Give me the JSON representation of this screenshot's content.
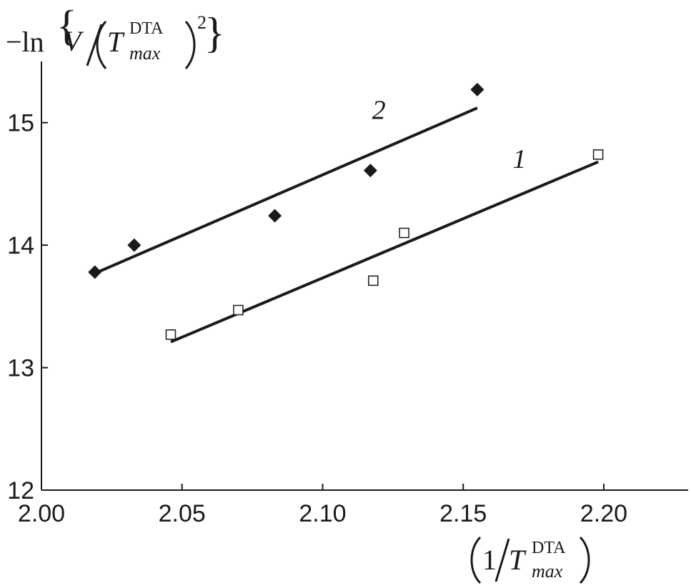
{
  "chart_data": {
    "type": "scatter",
    "title": "",
    "ylabel": {
      "prefix": "−ln",
      "numerator": "V",
      "symbol": "T",
      "superscript": "DTA",
      "subscript": "max",
      "power": "2"
    },
    "xlabel": {
      "numerator": "1",
      "symbol": "T",
      "superscript": "DTA",
      "subscript": "max"
    },
    "xlim": [
      2.0,
      2.23
    ],
    "ylim": [
      12,
      15.5
    ],
    "x_ticks": [
      2.0,
      2.05,
      2.1,
      2.15,
      2.2
    ],
    "x_tick_labels": [
      "2.00",
      "2.05",
      "2.10",
      "2.15",
      "2.20"
    ],
    "y_ticks": [
      12,
      13,
      14,
      15
    ],
    "y_tick_labels": [
      "12",
      "13",
      "14",
      "15"
    ],
    "grid": false,
    "series": [
      {
        "name": "1",
        "marker": "open-square",
        "color": "#1a1a1a",
        "points": [
          {
            "x": 2.046,
            "y": 13.27
          },
          {
            "x": 2.07,
            "y": 13.47
          },
          {
            "x": 2.118,
            "y": 13.71
          },
          {
            "x": 2.129,
            "y": 14.1
          },
          {
            "x": 2.198,
            "y": 14.74
          }
        ],
        "fit_line": [
          {
            "x": 2.046,
            "y": 13.21
          },
          {
            "x": 2.198,
            "y": 14.68
          }
        ]
      },
      {
        "name": "2",
        "marker": "filled-diamond",
        "color": "#1a1a1a",
        "points": [
          {
            "x": 2.019,
            "y": 13.78
          },
          {
            "x": 2.033,
            "y": 14.0
          },
          {
            "x": 2.083,
            "y": 14.24
          },
          {
            "x": 2.117,
            "y": 14.61
          },
          {
            "x": 2.155,
            "y": 15.27
          }
        ],
        "fit_line": [
          {
            "x": 2.019,
            "y": 13.77
          },
          {
            "x": 2.155,
            "y": 15.12
          }
        ]
      }
    ]
  }
}
